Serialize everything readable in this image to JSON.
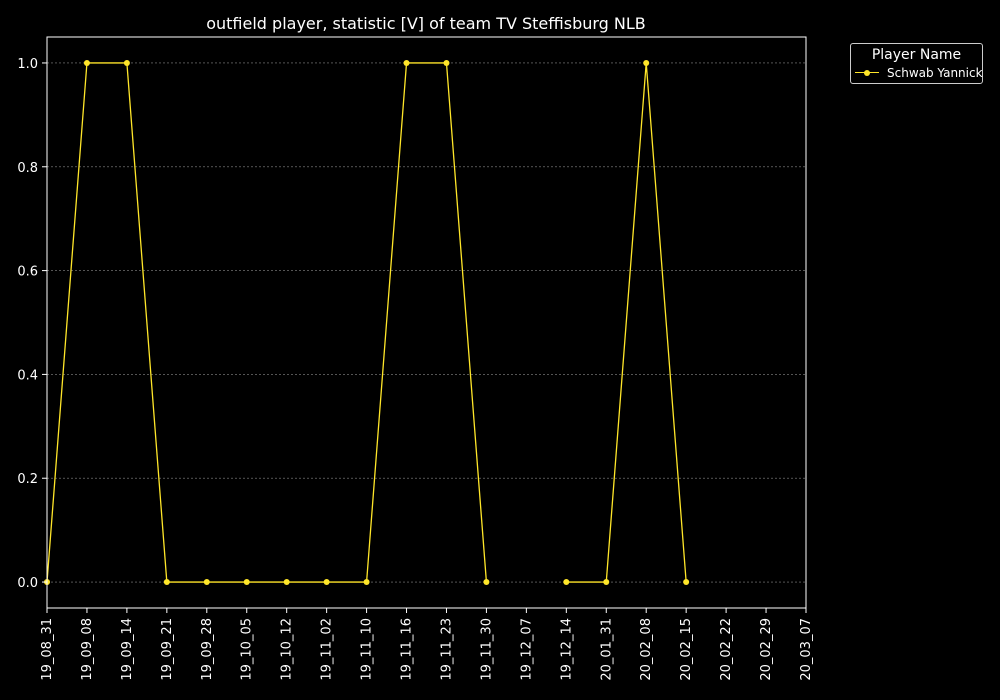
{
  "chart_data": {
    "type": "line",
    "title": "outfield player, statistic [V] of team TV Steffisburg NLB",
    "xlabel": "",
    "ylabel": "",
    "categories": [
      "19_08_31",
      "19_09_08",
      "19_09_14",
      "19_09_21",
      "19_09_28",
      "19_10_05",
      "19_10_12",
      "19_11_02",
      "19_11_10",
      "19_11_16",
      "19_11_23",
      "19_11_30",
      "19_12_07",
      "19_12_14",
      "20_01_31",
      "20_02_08",
      "20_02_15",
      "20_02_22",
      "20_02_29",
      "20_03_07"
    ],
    "series": [
      {
        "name": "Schwab Yannick",
        "values": [
          0.0,
          1.0,
          1.0,
          0.0,
          0.0,
          0.0,
          0.0,
          0.0,
          0.0,
          1.0,
          1.0,
          0.0,
          null,
          0.0,
          0.0,
          1.0,
          0.0,
          null,
          null,
          null
        ]
      }
    ],
    "yticks": [
      "0.0",
      "0.2",
      "0.4",
      "0.6",
      "0.8",
      "1.0"
    ],
    "ylim": [
      -0.05,
      1.05
    ],
    "grid": true,
    "legend_title": "Player Name",
    "legend_position": "outside-top-right",
    "colors": {
      "background": "#000000",
      "line": "#ffe629",
      "axis": "#ffffff",
      "grid": "#888888",
      "text": "#ffffff"
    }
  }
}
